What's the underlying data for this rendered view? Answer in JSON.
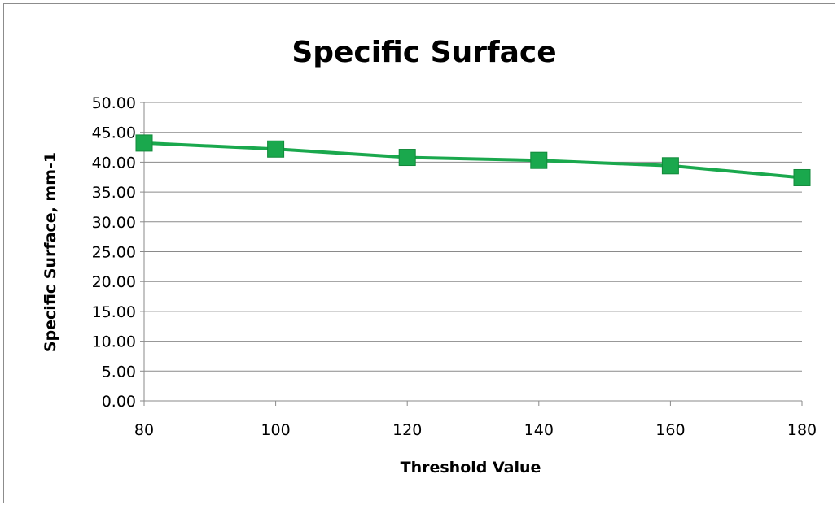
{
  "chart_data": {
    "type": "line",
    "title": "Specific Surface",
    "xlabel": "Threshold Value",
    "ylabel": "Specific Surface, mm-1",
    "x": [
      80,
      100,
      120,
      140,
      160,
      180
    ],
    "series": [
      {
        "values": [
          43.2,
          42.2,
          40.8,
          40.3,
          39.4,
          37.4
        ],
        "color": "#1aa84d",
        "marker": "square"
      }
    ],
    "xlim": [
      80,
      180
    ],
    "xticks": [
      "80",
      "100",
      "120",
      "140",
      "160",
      "180"
    ],
    "ylim": [
      0,
      50
    ],
    "yticks": [
      "0.00",
      "5.00",
      "10.00",
      "15.00",
      "20.00",
      "25.00",
      "30.00",
      "35.00",
      "40.00",
      "45.00",
      "50.00"
    ],
    "grid": "horizontal",
    "legend": "none"
  }
}
